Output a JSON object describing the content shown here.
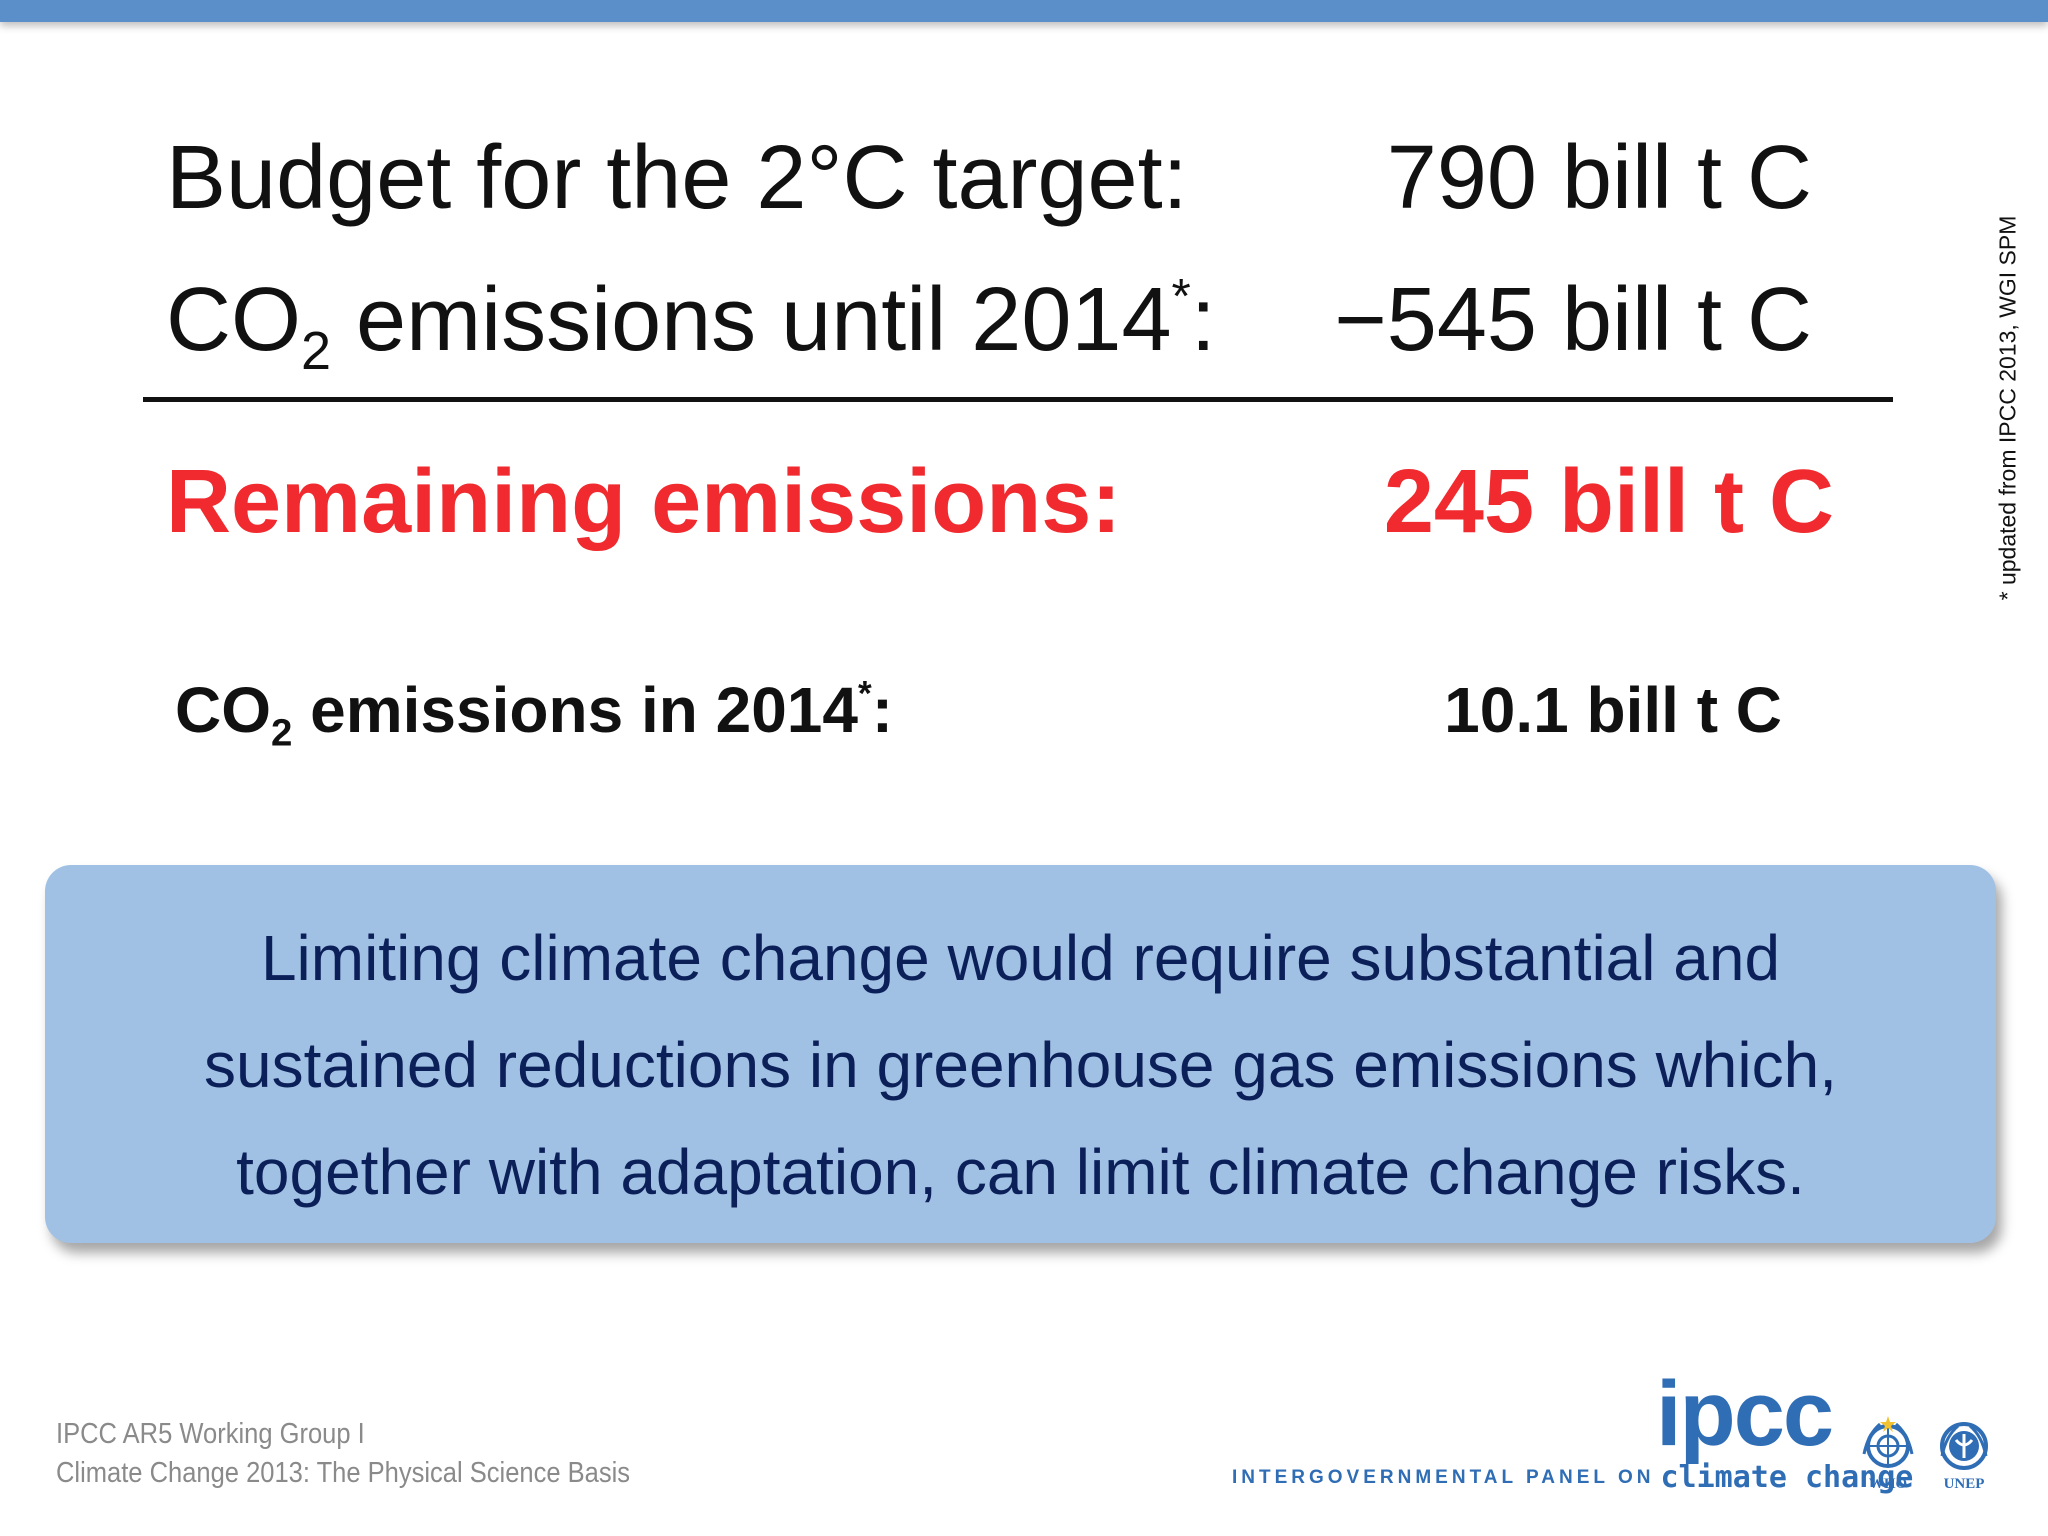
{
  "rows": {
    "budget": {
      "label": "Budget for the 2°C target:",
      "value": "790 bill t C"
    },
    "emissions_until": {
      "label_prefix": "CO",
      "label_sub": "2",
      "label_mid": " emissions until 2014",
      "label_star": "*",
      "label_end": ":",
      "value": "−545 bill t C"
    },
    "remaining": {
      "label": "Remaining emissions:",
      "value": "245 bill t C"
    },
    "emissions_in": {
      "label_prefix": "CO",
      "label_sub": "2",
      "label_mid": " emissions in 2014",
      "label_star": "*",
      "label_end": ":",
      "value": "10.1 bill t C"
    }
  },
  "side_note": "* updated from IPCC 2013, WGI SPM",
  "callout": {
    "lines": [
      "Limiting climate change would require substantial and",
      "sustained reductions in greenhouse gas emissions which,",
      "together with adaptation, can limit climate change risks."
    ]
  },
  "footer": {
    "line1": "IPCC AR5 Working Group I",
    "line2": "Climate Change 2013: The Physical Science Basis"
  },
  "logos": {
    "ipcc_word": "ipcc",
    "tagline_small": "INTERGOVERNMENTAL PANEL ON",
    "tagline_large": "climate change",
    "who": "WHO",
    "unep": "UNEP"
  },
  "colors": {
    "top_bar": "#5a8fca",
    "highlight_red": "#f02a2e",
    "callout_bg": "#a1c1e4",
    "callout_text": "#0b1f59",
    "logo_blue": "#2f6db5"
  }
}
